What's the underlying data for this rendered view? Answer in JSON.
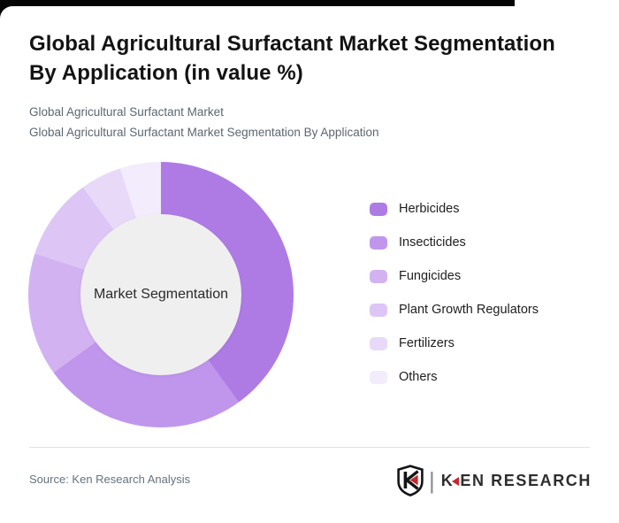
{
  "header": {
    "title_lines": [
      "Global Agricultural Surfactant Market Segmentation",
      "By Application (in value %)"
    ],
    "subtitle_lines": [
      "Global Agricultural Surfactant Market",
      "Global Agricultural Surfactant Market Segmentation By Application"
    ]
  },
  "chart_data": {
    "type": "pie",
    "variant": "donut",
    "title": "Global Agricultural Surfactant Market Segmentation By Application (in value %)",
    "center_label": "Market Segmentation",
    "categories": [
      "Herbicides",
      "Insecticides",
      "Fungicides",
      "Plant Growth Regulators",
      "Fertilizers",
      "Others"
    ],
    "values": [
      40,
      25,
      15,
      10,
      5,
      5
    ],
    "unit": "%",
    "colors": [
      "#ae7be5",
      "#c096ec",
      "#d2b2f1",
      "#ddc6f5",
      "#e8d9f9",
      "#f3ecfc"
    ],
    "inner_circle_color": "#f0eff0",
    "start_angle_deg": 0,
    "direction": "clockwise",
    "inner_radius_ratio": 0.61,
    "legend_position": "right"
  },
  "footer": {
    "source": "Source: Ken Research Analysis",
    "logo": {
      "emblem": "ken-research-shield",
      "divider": "|",
      "brand_k": "K",
      "brand_rest": "EN RESEARCH",
      "accent_color": "#c9252b"
    }
  }
}
